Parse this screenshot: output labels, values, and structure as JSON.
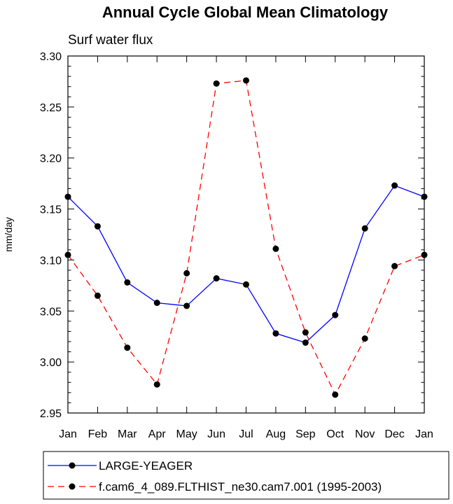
{
  "chart_data": {
    "type": "line",
    "title": "Annual Cycle Global Mean Climatology",
    "subtitle": "Surf water flux",
    "xlabel": "",
    "ylabel": "mm/day",
    "categories": [
      "Jan",
      "Feb",
      "Mar",
      "Apr",
      "May",
      "Jun",
      "Jul",
      "Aug",
      "Sep",
      "Oct",
      "Nov",
      "Dec",
      "Jan"
    ],
    "ylim": [
      2.95,
      3.3
    ],
    "yticks": [
      "2.95",
      "3.00",
      "3.05",
      "3.10",
      "3.15",
      "3.20",
      "3.25",
      "3.30"
    ],
    "grid": false,
    "legend_position": "bottom",
    "series": [
      {
        "name": "LARGE-YEAGER",
        "color": "#0000ff",
        "line_style": "solid",
        "marker": "filled-circle",
        "values": [
          3.162,
          3.133,
          3.078,
          3.058,
          3.055,
          3.082,
          3.076,
          3.028,
          3.019,
          3.046,
          3.131,
          3.173,
          3.162
        ]
      },
      {
        "name": "f.cam6_4_089.FLTHIST_ne30.cam7.001 (1995-2003)",
        "color": "#ff0000",
        "line_style": "dashed",
        "marker": "filled-circle",
        "values": [
          3.105,
          3.065,
          3.014,
          2.978,
          3.087,
          3.273,
          3.276,
          3.111,
          3.029,
          2.968,
          3.023,
          3.094,
          3.105
        ]
      }
    ]
  }
}
